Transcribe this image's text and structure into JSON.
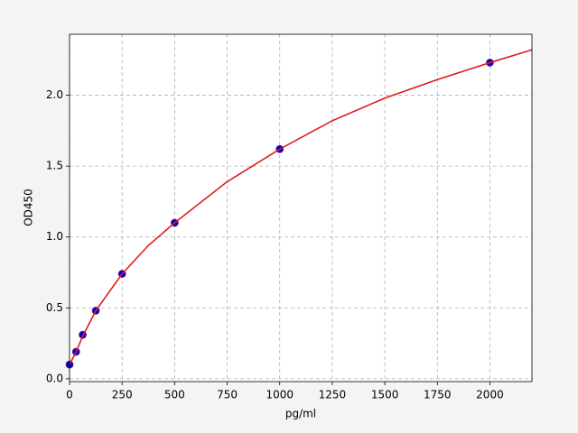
{
  "chart_data": {
    "type": "scatter",
    "xlabel": "pg/ml",
    "ylabel": "OD450",
    "xlim": [
      0,
      2200
    ],
    "ylim": [
      -0.02,
      2.43
    ],
    "xticks": [
      0,
      250,
      500,
      750,
      1000,
      1250,
      1500,
      1750,
      2000
    ],
    "yticks": [
      {
        "value": 0,
        "label": "0.0"
      },
      0.5,
      {
        "value": 1,
        "label": "1.0"
      },
      1.5,
      {
        "value": 2,
        "label": "2.0"
      }
    ],
    "grid": true,
    "series": [
      {
        "type": "line",
        "color": "#dd1c1c",
        "x": [
          0,
          31.25,
          62.5,
          125,
          250,
          375,
          500,
          750,
          1000,
          1250,
          1500,
          1750,
          2000,
          2200
        ],
        "values": [
          0.1,
          0.19,
          0.3,
          0.48,
          0.74,
          0.94,
          1.1,
          1.39,
          1.62,
          1.82,
          1.98,
          2.11,
          2.23,
          2.32
        ]
      },
      {
        "type": "scatter",
        "color": "#0000cc",
        "x": [
          0,
          31.25,
          62.5,
          125,
          250,
          500,
          1000,
          2000
        ],
        "values": [
          0.1,
          0.19,
          0.31,
          0.48,
          0.74,
          1.1,
          1.62,
          2.23
        ]
      }
    ]
  }
}
